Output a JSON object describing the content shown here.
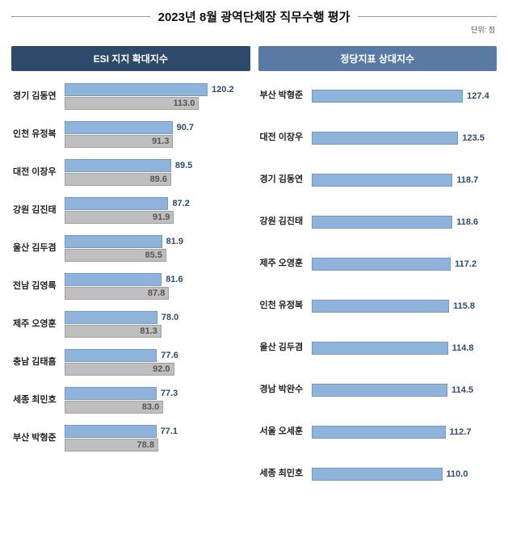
{
  "title": "2023년 8월 광역단체장 직무수행 평가",
  "unit_label": "단위: 점",
  "colors": {
    "header_left": "#2e4a6b",
    "header_right": "#5a7aa6",
    "bar_blue": "#8fb4dc",
    "bar_gray": "#bfbfbf",
    "val_blue": "#2b4c73",
    "val_gray": "#555555",
    "title_text": "#111111"
  },
  "left": {
    "header": "ESI 지지 확대지수",
    "max": 130,
    "rows": [
      {
        "label": "경기 김동연",
        "v1": 120.2,
        "v2": 113.0
      },
      {
        "label": "인천 유정복",
        "v1": 90.7,
        "v2": 91.3
      },
      {
        "label": "대전 이장우",
        "v1": 89.5,
        "v2": 89.6
      },
      {
        "label": "강원 김진태",
        "v1": 87.2,
        "v2": 91.9
      },
      {
        "label": "울산 김두겸",
        "v1": 81.9,
        "v2": 85.5
      },
      {
        "label": "전남 김영록",
        "v1": 81.6,
        "v2": 87.8
      },
      {
        "label": "제주 오영훈",
        "v1": 78.0,
        "v2": 81.3
      },
      {
        "label": "충남 김태흠",
        "v1": 77.6,
        "v2": 92.0
      },
      {
        "label": "세종 최민호",
        "v1": 77.3,
        "v2": 83.0
      },
      {
        "label": "부산 박형준",
        "v1": 77.1,
        "v2": 78.8
      }
    ]
  },
  "right": {
    "header": "정당지표 상대지수",
    "max": 130,
    "rows": [
      {
        "label": "부산 박형준",
        "v1": 127.4
      },
      {
        "label": "대전 이장우",
        "v1": 123.5
      },
      {
        "label": "경기 김동연",
        "v1": 118.7
      },
      {
        "label": "강원 김진태",
        "v1": 118.6
      },
      {
        "label": "제주 오영훈",
        "v1": 117.2
      },
      {
        "label": "인천 유정복",
        "v1": 115.8
      },
      {
        "label": "울산 김두겸",
        "v1": 114.8
      },
      {
        "label": "경남 박완수",
        "v1": 114.5
      },
      {
        "label": "서울 오세훈",
        "v1": 112.7
      },
      {
        "label": "세종 최민호",
        "v1": 110.0
      }
    ]
  }
}
